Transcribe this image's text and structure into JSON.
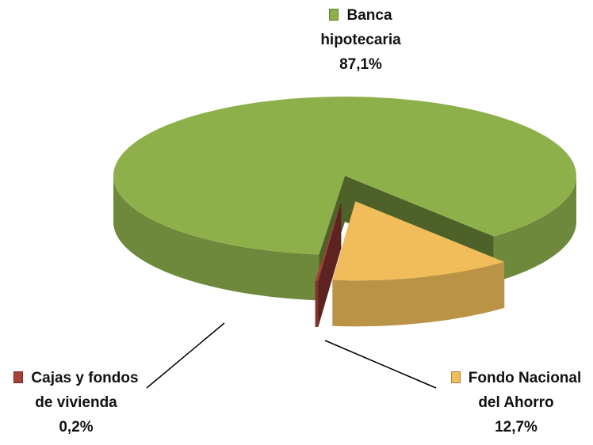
{
  "chart_data": {
    "type": "pie",
    "categories": [
      "Banca hipotecaria",
      "Fondo Nacional del Ahorro",
      "Cajas y fondos de vivienda"
    ],
    "values": [
      87.1,
      12.7,
      0.2
    ],
    "value_labels": [
      "87,1%",
      "12,7%",
      "0,2%"
    ],
    "colors": [
      "#8db04b",
      "#f0bd5a",
      "#a8403a"
    ]
  }
}
